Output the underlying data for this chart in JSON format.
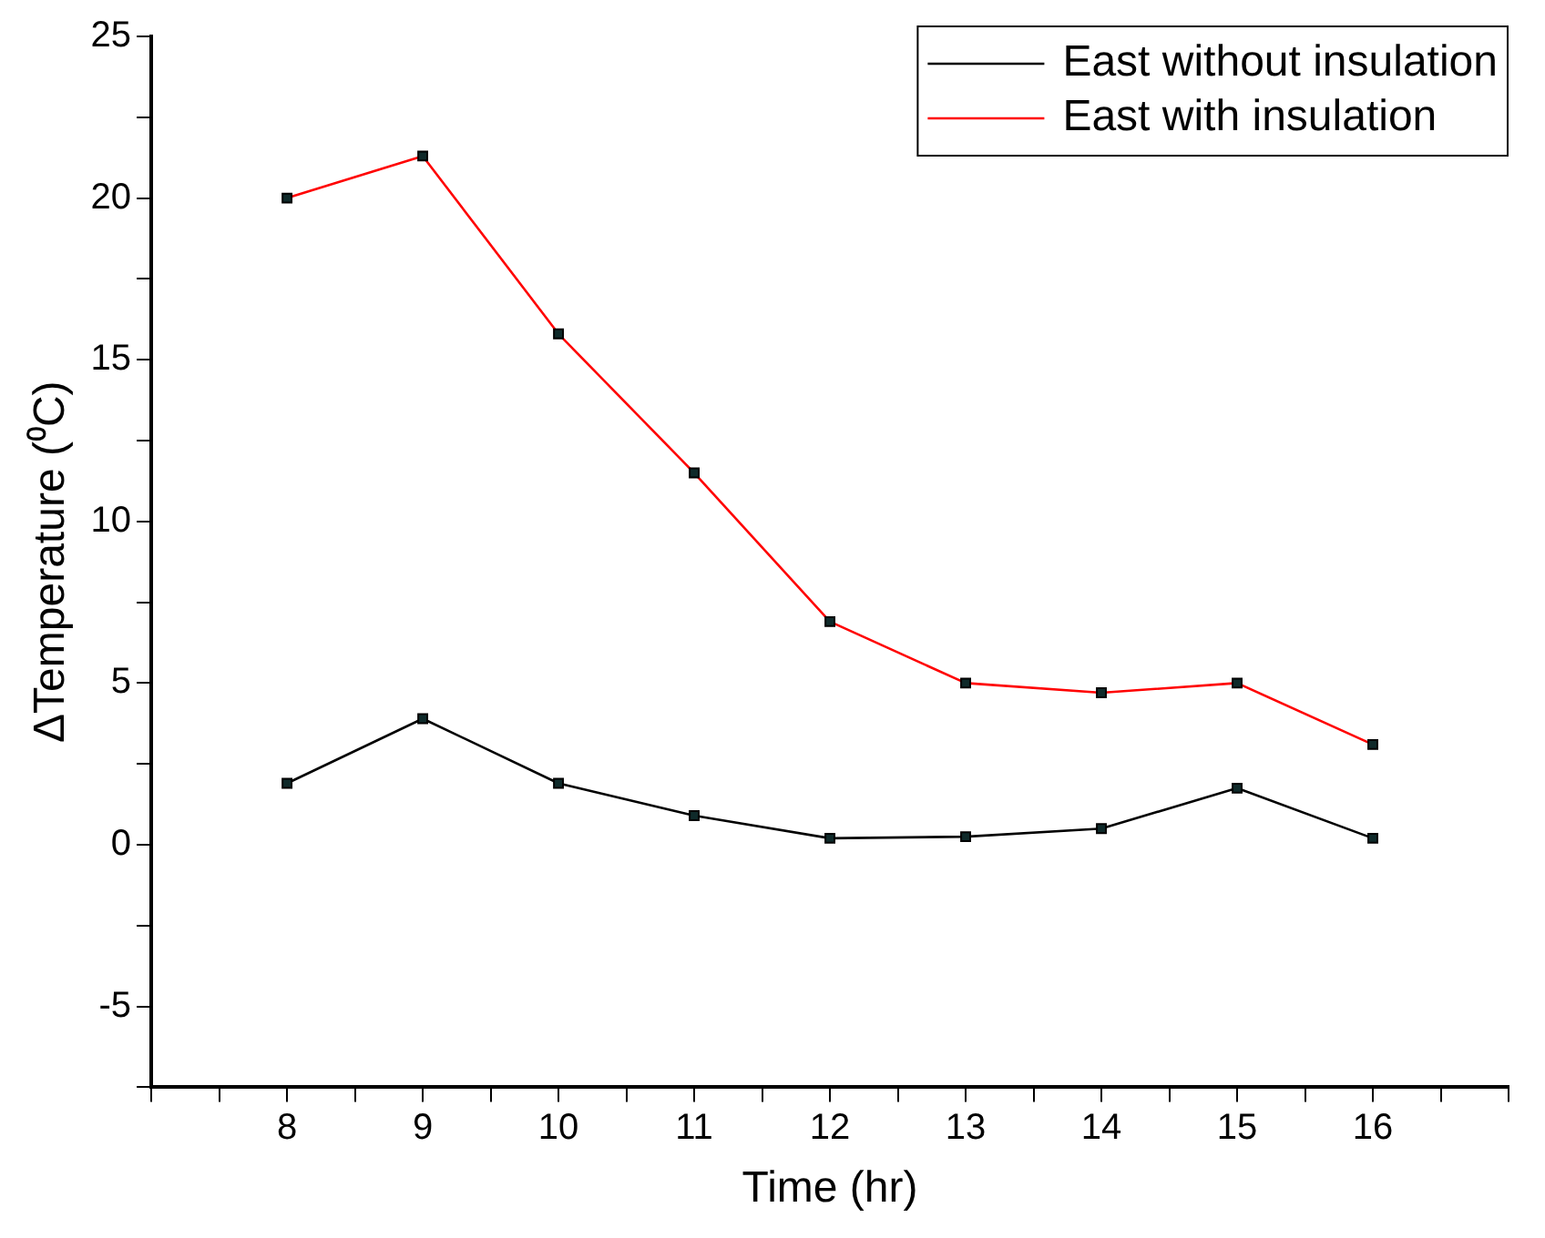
{
  "chart_data": {
    "type": "line",
    "xlabel": "Time (hr)",
    "ylabel": "ΔTemperature (⁰C)",
    "x": [
      8,
      9,
      10,
      11,
      12,
      13,
      14,
      15,
      16
    ],
    "series": [
      {
        "name": "East without insulation",
        "color": "#000000",
        "values": [
          1.9,
          3.9,
          1.9,
          0.9,
          0.2,
          0.25,
          0.5,
          1.75,
          0.2
        ]
      },
      {
        "name": "East with insulation",
        "color": "#ff0000",
        "values": [
          20,
          21.3,
          15.8,
          11.5,
          6.9,
          5,
          4.7,
          5,
          3.1
        ]
      }
    ],
    "xlim": [
      7,
      17
    ],
    "xticks": [
      {
        "value": 7,
        "label": null
      },
      {
        "value": 7.5,
        "label": null
      },
      8,
      {
        "value": 8.5,
        "label": null
      },
      9,
      {
        "value": 9.5,
        "label": null
      },
      10,
      {
        "value": 10.5,
        "label": null
      },
      11,
      {
        "value": 11.5,
        "label": null
      },
      12,
      {
        "value": 12.5,
        "label": null
      },
      13,
      {
        "value": 13.5,
        "label": null
      },
      14,
      {
        "value": 14.5,
        "label": null
      },
      15,
      {
        "value": 15.5,
        "label": null
      },
      16,
      {
        "value": 16.5,
        "label": null
      },
      {
        "value": 17,
        "label": null
      }
    ],
    "ylim": [
      -7.5,
      25
    ],
    "yticks": [
      {
        "value": -7.5,
        "label": null
      },
      -5,
      {
        "value": -2.5,
        "label": null
      },
      0,
      {
        "value": 2.5,
        "label": null
      },
      5,
      {
        "value": 7.5,
        "label": null
      },
      10,
      {
        "value": 12.5,
        "label": null
      },
      15,
      {
        "value": 17.5,
        "label": null
      },
      20,
      {
        "value": 22.5,
        "label": null
      },
      25
    ],
    "grid": false,
    "legend": "top right",
    "marker": "square",
    "line_style": "solid"
  }
}
